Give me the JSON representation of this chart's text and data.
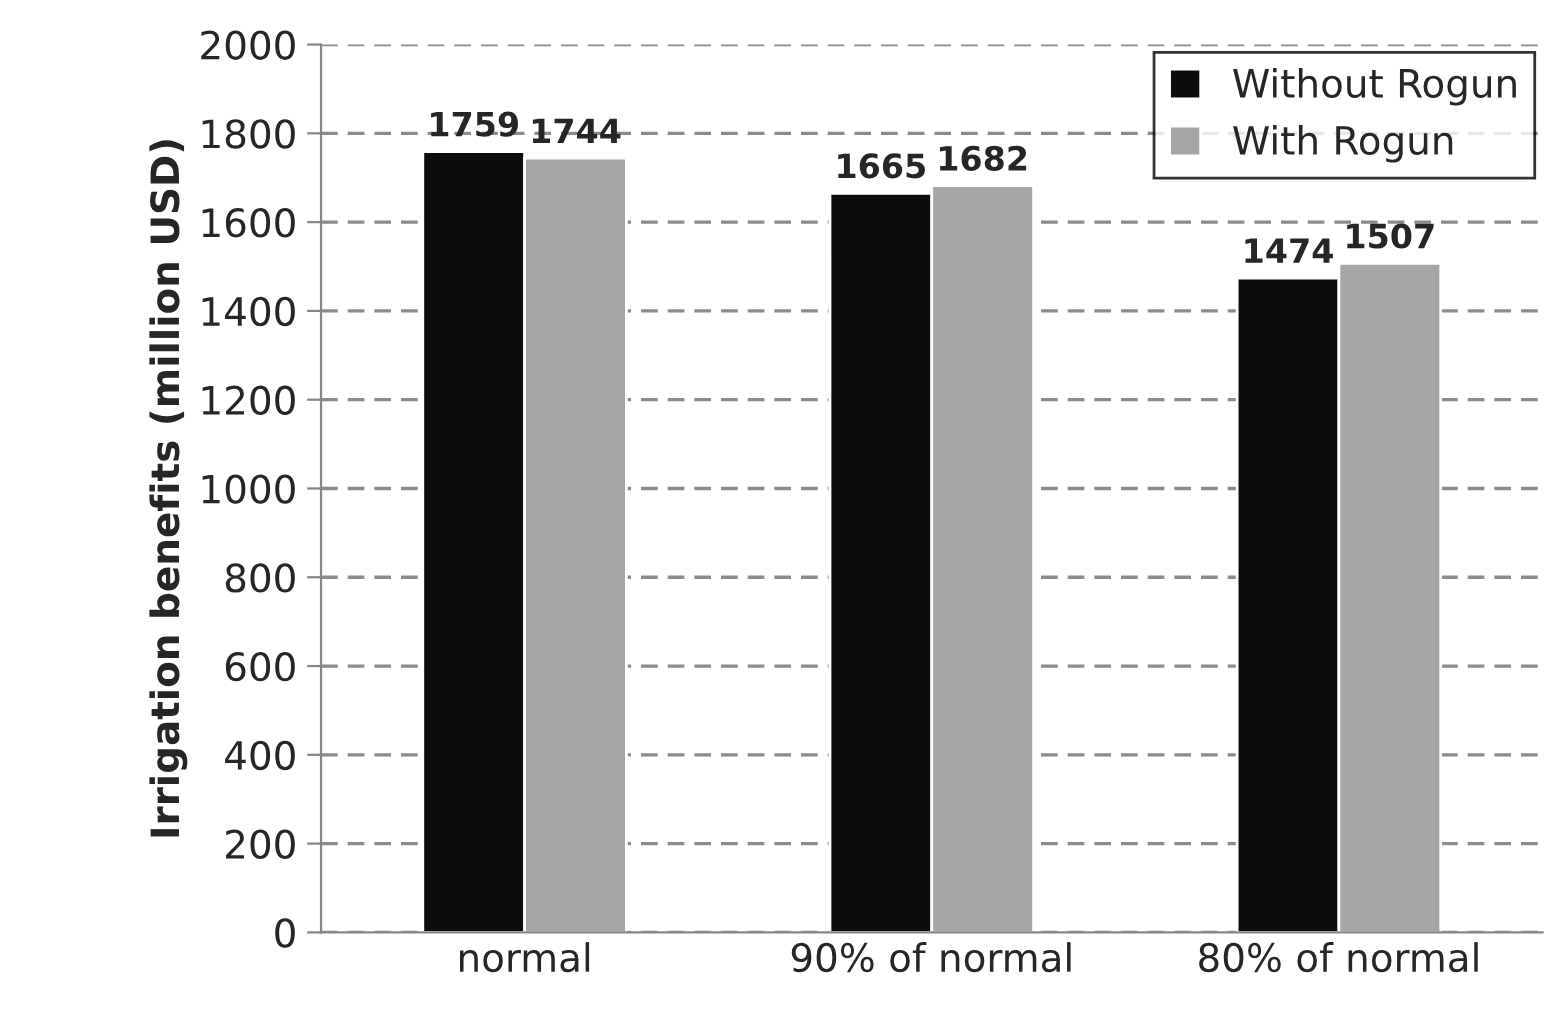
{
  "chart_data": {
    "type": "bar",
    "ylabel": "Irrigation benefits (million USD)",
    "categories": [
      "normal",
      "90% of normal",
      "80% of normal"
    ],
    "series": [
      {
        "name": "Without Rogun",
        "color": "#0d0d0d",
        "values": [
          1759,
          1665,
          1474
        ]
      },
      {
        "name": "With Rogun",
        "color": "#a6a6a6",
        "values": [
          1744,
          1682,
          1507
        ]
      }
    ],
    "ylim": [
      0,
      2000
    ],
    "yticks": [
      0,
      200,
      400,
      600,
      800,
      1000,
      1200,
      1400,
      1600,
      1800,
      2000
    ],
    "grid": "y",
    "legend": "top right",
    "data_labels": true
  }
}
